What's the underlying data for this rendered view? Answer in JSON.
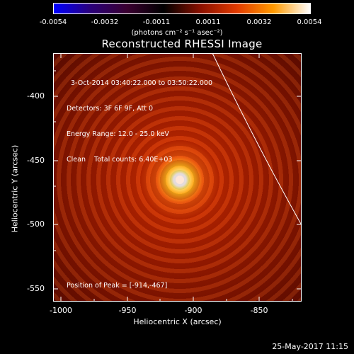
{
  "colorbar": {
    "ticks": [
      "-0.0054",
      "-0.0032",
      "-0.0011",
      "0.0011",
      "0.0032",
      "0.0054"
    ],
    "units": "(photons cm⁻² s⁻¹ asec⁻²)",
    "colormap": [
      "#0000ff",
      "#2a007a",
      "#3a0030",
      "#000000",
      "#8a1000",
      "#e23a00",
      "#ff9a00",
      "#ffffff"
    ]
  },
  "title": "Reconstructed RHESSI Image",
  "annotation": {
    "line1": "3-Oct-2014 03:40:22.000 to 03:50:22.000",
    "line2": "Detectors: 3F 6F 9F, Att 0",
    "line3": "Energy Range: 12.0 - 25.0 keV",
    "line4": "Clean    Total counts: 6.40E+03"
  },
  "peak_label": "Position of Peak = [-914,-467]",
  "axes": {
    "xlabel": "Heliocentric X (arcsec)",
    "ylabel": "Heliocentric Y (arcsec)",
    "xticks": [
      "-1000",
      "-950",
      "-900",
      "-850"
    ],
    "yticks": [
      "-400",
      "-450",
      "-500",
      "-550"
    ]
  },
  "footer_date": "25-May-2017 11:15"
}
